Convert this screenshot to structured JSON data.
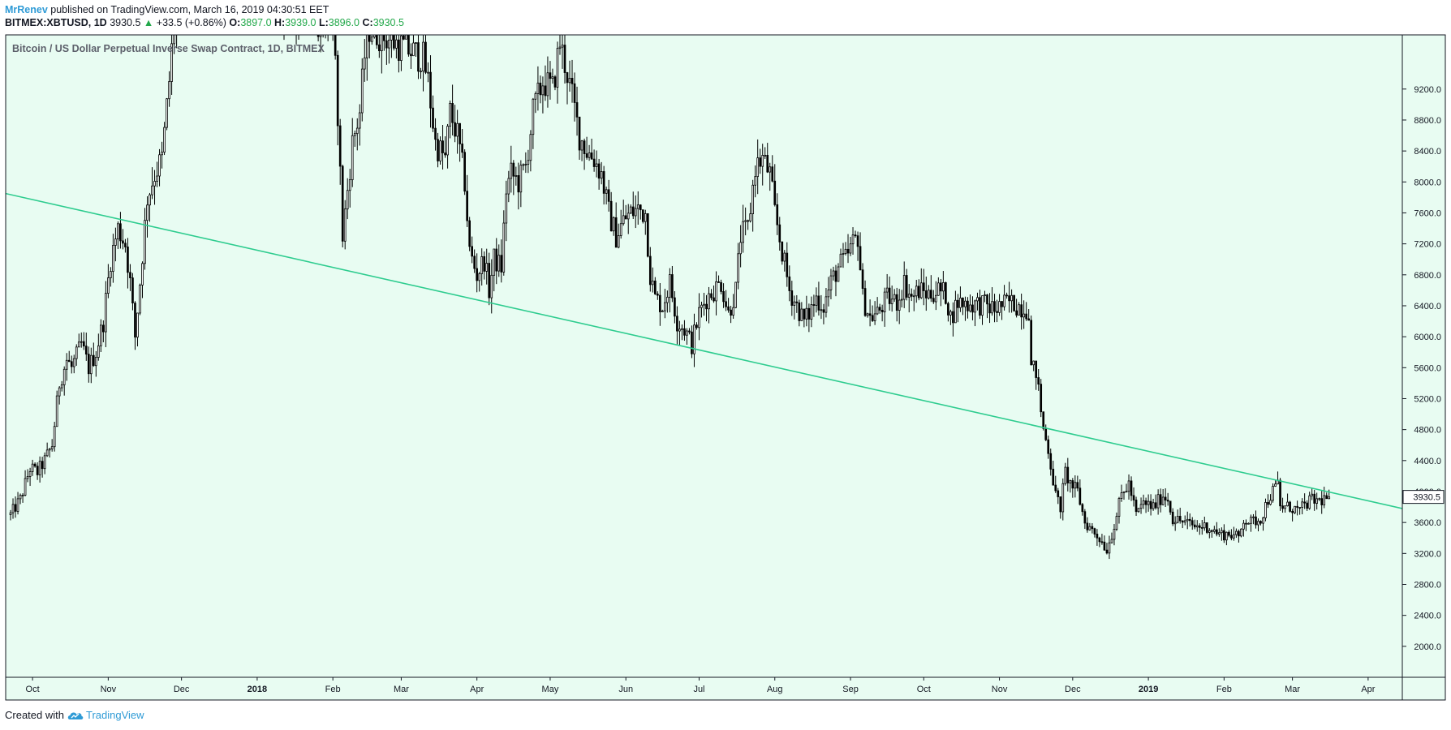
{
  "header": {
    "author": "MrRenev",
    "published_text": "published on TradingView.com, March 16, 2019 04:30:51 EET",
    "symbol": "BITMEX:XBTUSD, 1D",
    "last": "3930.5",
    "change_arrow": "▲",
    "change": "+33.5 (+0.86%)",
    "o_label": "O:",
    "o_value": "3897.0",
    "h_label": "H:",
    "h_value": "3939.0",
    "l_label": "L:",
    "l_value": "3896.0",
    "c_label": "C:",
    "c_value": "3930.5"
  },
  "footer": {
    "created_with": "Created with",
    "brand": "TradingView"
  },
  "colors": {
    "background": "#e8fcf2",
    "trendline": "#2ecc8f",
    "candle": "#000000",
    "up_text": "#22a84a",
    "author": "#2f9bd6"
  },
  "chart_data": {
    "type": "candlestick",
    "title": "Bitcoin / US Dollar Perpetual Inverse Swap Contract, 1D, BITMEX",
    "ylim": [
      1600,
      9900
    ],
    "y_ticks": [
      "9200.0",
      "8800.0",
      "8400.0",
      "8000.0",
      "7600.0",
      "7200.0",
      "6800.0",
      "6400.0",
      "6000.0",
      "5600.0",
      "5200.0",
      "4800.0",
      "4400.0",
      "4000.0",
      "3600.0",
      "3200.0",
      "2800.0",
      "2400.0",
      "2000.0"
    ],
    "x_ticks": [
      "Oct",
      "Nov",
      "Dec",
      "2018",
      "Feb",
      "Mar",
      "Apr",
      "May",
      "Jun",
      "Jul",
      "Aug",
      "Sep",
      "Oct",
      "Nov",
      "Dec",
      "2019",
      "Feb",
      "Mar",
      "Apr"
    ],
    "bold_x_ticks": [
      "2018",
      "2019"
    ],
    "last_price_label": "3930.5",
    "price_path": [
      [
        "2017-09-22",
        3700
      ],
      [
        "2017-09-26",
        3900
      ],
      [
        "2017-09-30",
        4300
      ],
      [
        "2017-10-03",
        4250
      ],
      [
        "2017-10-06",
        4400
      ],
      [
        "2017-10-09",
        4600
      ],
      [
        "2017-10-12",
        5400
      ],
      [
        "2017-10-15",
        5700
      ],
      [
        "2017-10-17",
        5600
      ],
      [
        "2017-10-21",
        5900
      ],
      [
        "2017-10-24",
        5600
      ],
      [
        "2017-10-27",
        5800
      ],
      [
        "2017-10-30",
        6200
      ],
      [
        "2017-11-02",
        7000
      ],
      [
        "2017-11-05",
        7400
      ],
      [
        "2017-11-08",
        7200
      ],
      [
        "2017-11-10",
        6700
      ],
      [
        "2017-11-12",
        6000
      ],
      [
        "2017-11-14",
        6700
      ],
      [
        "2017-11-17",
        7800
      ],
      [
        "2017-11-20",
        8100
      ],
      [
        "2017-11-23",
        8300
      ],
      [
        "2017-11-26",
        9300
      ],
      [
        "2017-11-29",
        10500
      ],
      [
        "2017-12-02",
        11000
      ],
      [
        "2018-02-01",
        10000
      ],
      [
        "2018-02-03",
        8900
      ],
      [
        "2018-02-05",
        7300
      ],
      [
        "2018-02-07",
        7900
      ],
      [
        "2018-02-09",
        8500
      ],
      [
        "2018-02-12",
        8900
      ],
      [
        "2018-02-15",
        10000
      ],
      [
        "2018-03-10",
        9600
      ],
      [
        "2018-03-12",
        9300
      ],
      [
        "2018-03-15",
        8500
      ],
      [
        "2018-03-19",
        8300
      ],
      [
        "2018-03-21",
        8900
      ],
      [
        "2018-03-24",
        8600
      ],
      [
        "2018-03-27",
        8000
      ],
      [
        "2018-03-29",
        7100
      ],
      [
        "2018-04-01",
        6800
      ],
      [
        "2018-04-04",
        7000
      ],
      [
        "2018-04-06",
        6600
      ],
      [
        "2018-04-08",
        7000
      ],
      [
        "2018-04-11",
        6900
      ],
      [
        "2018-04-13",
        7900
      ],
      [
        "2018-04-15",
        8100
      ],
      [
        "2018-04-18",
        8000
      ],
      [
        "2018-04-21",
        8200
      ],
      [
        "2018-04-24",
        8900
      ],
      [
        "2018-04-28",
        9300
      ],
      [
        "2018-05-02",
        9200
      ],
      [
        "2018-05-05",
        9800
      ],
      [
        "2018-05-08",
        9400
      ],
      [
        "2018-05-10",
        9100
      ],
      [
        "2018-05-13",
        8600
      ],
      [
        "2018-05-16",
        8400
      ],
      [
        "2018-05-19",
        8300
      ],
      [
        "2018-05-22",
        8100
      ],
      [
        "2018-05-25",
        7600
      ],
      [
        "2018-05-28",
        7300
      ],
      [
        "2018-05-31",
        7500
      ],
      [
        "2018-06-03",
        7600
      ],
      [
        "2018-06-06",
        7650
      ],
      [
        "2018-06-09",
        7600
      ],
      [
        "2018-06-11",
        6800
      ],
      [
        "2018-06-13",
        6500
      ],
      [
        "2018-06-16",
        6400
      ],
      [
        "2018-06-19",
        6700
      ],
      [
        "2018-06-22",
        6200
      ],
      [
        "2018-06-25",
        6100
      ],
      [
        "2018-06-28",
        5900
      ],
      [
        "2018-07-01",
        6300
      ],
      [
        "2018-07-04",
        6500
      ],
      [
        "2018-07-07",
        6600
      ],
      [
        "2018-07-10",
        6700
      ],
      [
        "2018-07-13",
        6300
      ],
      [
        "2018-07-16",
        6600
      ],
      [
        "2018-07-18",
        7300
      ],
      [
        "2018-07-21",
        7400
      ],
      [
        "2018-07-24",
        8200
      ],
      [
        "2018-07-27",
        8300
      ],
      [
        "2018-07-30",
        8100
      ],
      [
        "2018-08-01",
        7600
      ],
      [
        "2018-08-04",
        7100
      ],
      [
        "2018-08-07",
        6600
      ],
      [
        "2018-08-10",
        6400
      ],
      [
        "2018-08-13",
        6200
      ],
      [
        "2018-08-15",
        6300
      ],
      [
        "2018-08-18",
        6500
      ],
      [
        "2018-08-21",
        6400
      ],
      [
        "2018-08-24",
        6700
      ],
      [
        "2018-08-27",
        6900
      ],
      [
        "2018-08-30",
        7000
      ],
      [
        "2018-09-02",
        7200
      ],
      [
        "2018-09-04",
        7300
      ],
      [
        "2018-09-06",
        6500
      ],
      [
        "2018-09-09",
        6250
      ],
      [
        "2018-09-12",
        6300
      ],
      [
        "2018-09-16",
        6500
      ],
      [
        "2018-09-20",
        6450
      ],
      [
        "2018-09-23",
        6700
      ],
      [
        "2018-09-26",
        6500
      ],
      [
        "2018-09-29",
        6600
      ],
      [
        "2018-10-03",
        6550
      ],
      [
        "2018-10-07",
        6600
      ],
      [
        "2018-10-10",
        6550
      ],
      [
        "2018-10-12",
        6250
      ],
      [
        "2018-10-15",
        6450
      ],
      [
        "2018-10-20",
        6420
      ],
      [
        "2018-10-25",
        6420
      ],
      [
        "2018-10-30",
        6350
      ],
      [
        "2018-11-05",
        6450
      ],
      [
        "2018-11-09",
        6400
      ],
      [
        "2018-11-13",
        6350
      ],
      [
        "2018-11-14",
        5600
      ],
      [
        "2018-11-16",
        5550
      ],
      [
        "2018-11-19",
        4800
      ],
      [
        "2018-11-21",
        4550
      ],
      [
        "2018-11-24",
        3950
      ],
      [
        "2018-11-26",
        3800
      ],
      [
        "2018-11-28",
        4250
      ],
      [
        "2018-11-30",
        4100
      ],
      [
        "2018-12-03",
        4000
      ],
      [
        "2018-12-06",
        3600
      ],
      [
        "2018-12-09",
        3500
      ],
      [
        "2018-12-12",
        3400
      ],
      [
        "2018-12-15",
        3250
      ],
      [
        "2018-12-17",
        3450
      ],
      [
        "2018-12-19",
        3700
      ],
      [
        "2018-12-21",
        3950
      ],
      [
        "2018-12-24",
        4100
      ],
      [
        "2018-12-27",
        3700
      ],
      [
        "2018-12-30",
        3850
      ],
      [
        "2019-01-03",
        3800
      ],
      [
        "2019-01-07",
        3950
      ],
      [
        "2019-01-09",
        3900
      ],
      [
        "2019-01-11",
        3650
      ],
      [
        "2019-01-16",
        3600
      ],
      [
        "2019-01-20",
        3550
      ],
      [
        "2019-01-25",
        3550
      ],
      [
        "2019-01-30",
        3450
      ],
      [
        "2019-02-04",
        3450
      ],
      [
        "2019-02-07",
        3400
      ],
      [
        "2019-02-09",
        3650
      ],
      [
        "2019-02-12",
        3600
      ],
      [
        "2019-02-16",
        3650
      ],
      [
        "2019-02-19",
        3900
      ],
      [
        "2019-02-23",
        4100
      ],
      [
        "2019-02-24",
        3800
      ],
      [
        "2019-02-28",
        3800
      ],
      [
        "2019-03-04",
        3750
      ],
      [
        "2019-03-08",
        3880
      ],
      [
        "2019-03-12",
        3880
      ],
      [
        "2019-03-16",
        3930
      ]
    ],
    "trendline": [
      [
        "2017-09-20",
        7850
      ],
      [
        "2019-04-15",
        3780
      ]
    ]
  }
}
